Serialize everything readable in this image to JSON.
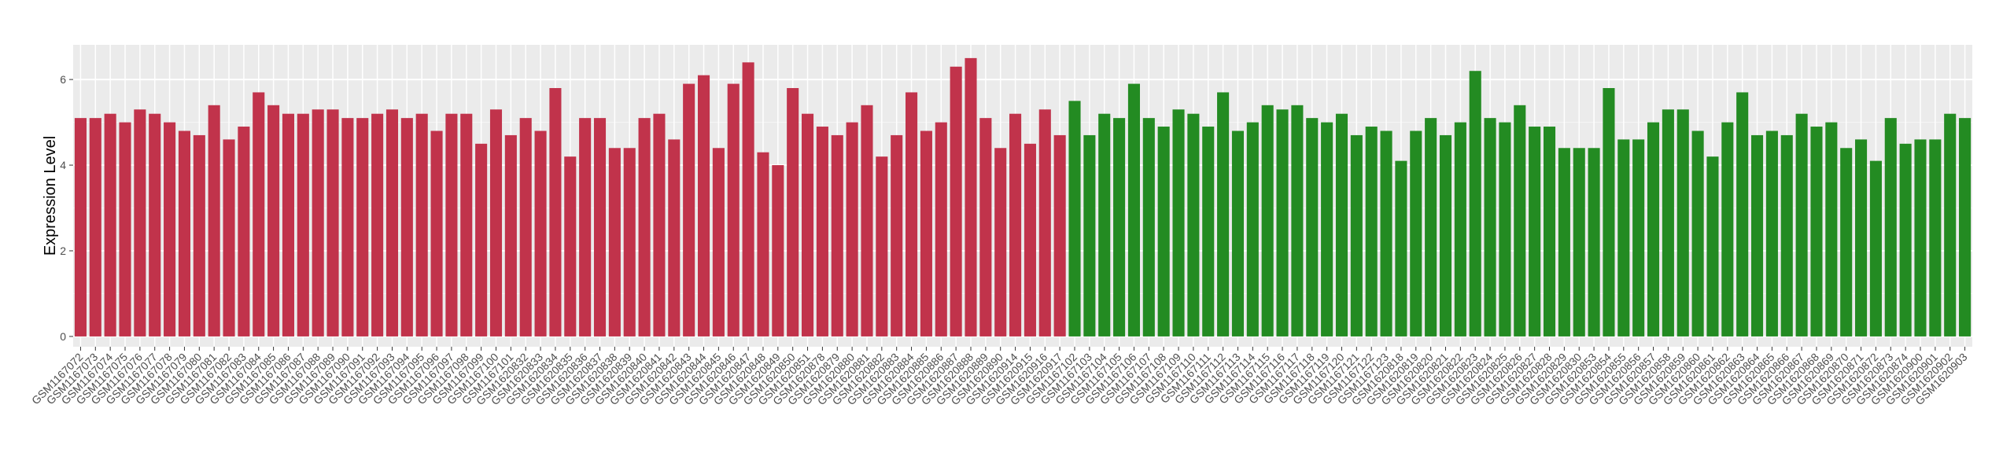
{
  "chart_data": {
    "type": "bar",
    "y_label": "Expression Level",
    "categories": [
      "GSM1167072",
      "GSM1167073",
      "GSM1167074",
      "GSM1167075",
      "GSM1167076",
      "GSM1167077",
      "GSM1167078",
      "GSM1167079",
      "GSM1167080",
      "GSM1167081",
      "GSM1167082",
      "GSM1167083",
      "GSM1167084",
      "GSM1167085",
      "GSM1167086",
      "GSM1167087",
      "GSM1167088",
      "GSM1167089",
      "GSM1167090",
      "GSM1167091",
      "GSM1167092",
      "GSM1167093",
      "GSM1167094",
      "GSM1167095",
      "GSM1167096",
      "GSM1167097",
      "GSM1167098",
      "GSM1167099",
      "GSM1167100",
      "GSM1167101",
      "GSM1620832",
      "GSM1620833",
      "GSM1620834",
      "GSM1620835",
      "GSM1620836",
      "GSM1620837",
      "GSM1620838",
      "GSM1620839",
      "GSM1620840",
      "GSM1620841",
      "GSM1620842",
      "GSM1620843",
      "GSM1620844",
      "GSM1620845",
      "GSM1620846",
      "GSM1620847",
      "GSM1620848",
      "GSM1620849",
      "GSM1620850",
      "GSM1620851",
      "GSM1620878",
      "GSM1620879",
      "GSM1620880",
      "GSM1620881",
      "GSM1620882",
      "GSM1620883",
      "GSM1620884",
      "GSM1620885",
      "GSM1620886",
      "GSM1620887",
      "GSM1620888",
      "GSM1620889",
      "GSM1620890",
      "GSM1620914",
      "GSM1620915",
      "GSM1620916",
      "GSM1620917",
      "GSM1167102",
      "GSM1167103",
      "GSM1167104",
      "GSM1167105",
      "GSM1167106",
      "GSM1167107",
      "GSM1167108",
      "GSM1167109",
      "GSM1167110",
      "GSM1167111",
      "GSM1167112",
      "GSM1167113",
      "GSM1167114",
      "GSM1167115",
      "GSM1167116",
      "GSM1167117",
      "GSM1167118",
      "GSM1167119",
      "GSM1167120",
      "GSM1167121",
      "GSM1167122",
      "GSM1167123",
      "GSM1620818",
      "GSM1620819",
      "GSM1620820",
      "GSM1620821",
      "GSM1620822",
      "GSM1620823",
      "GSM1620824",
      "GSM1620825",
      "GSM1620826",
      "GSM1620827",
      "GSM1620828",
      "GSM1620829",
      "GSM1620830",
      "GSM1620853",
      "GSM1620854",
      "GSM1620855",
      "GSM1620856",
      "GSM1620857",
      "GSM1620858",
      "GSM1620859",
      "GSM1620860",
      "GSM1620861",
      "GSM1620862",
      "GSM1620863",
      "GSM1620864",
      "GSM1620865",
      "GSM1620866",
      "GSM1620867",
      "GSM1620868",
      "GSM1620869",
      "GSM1620870",
      "GSM1620871",
      "GSM1620872",
      "GSM1620873",
      "GSM1620874",
      "GSM1620900",
      "GSM1620901",
      "GSM1620902",
      "GSM1620903"
    ],
    "series": [
      {
        "color": "#c1334b",
        "values": [
          5.1,
          5.1,
          5.2,
          5.0,
          5.3,
          5.2,
          5.0,
          4.8,
          4.7,
          5.4,
          4.6,
          4.9,
          5.7,
          5.4,
          5.2,
          5.2,
          5.3,
          5.3,
          5.1,
          5.1,
          5.2,
          5.3,
          5.1,
          5.2,
          4.8,
          5.2,
          5.2,
          4.5,
          5.3,
          4.7,
          5.1,
          4.8,
          5.8,
          4.2,
          5.1,
          5.1,
          4.4,
          4.4,
          5.1,
          5.2,
          4.6,
          5.9,
          6.1,
          4.4,
          5.9,
          6.4,
          4.3,
          4.0,
          5.8,
          5.2,
          4.9,
          4.7,
          5.0,
          5.4,
          4.2,
          4.7,
          5.7,
          4.8,
          5.0,
          6.3,
          6.5,
          5.1,
          4.4,
          5.2,
          4.5,
          5.3,
          4.7,
          null,
          null,
          null,
          null,
          null,
          null,
          null,
          null,
          null,
          null,
          null,
          null,
          null,
          null,
          null,
          null,
          null,
          null,
          null,
          null,
          null,
          null,
          null,
          null,
          null,
          null,
          null,
          null,
          null,
          null,
          null,
          null,
          null,
          null,
          null,
          null,
          null,
          null,
          null,
          null,
          null,
          null,
          null,
          null,
          null,
          null,
          null,
          null,
          null,
          null,
          null,
          null,
          null,
          null,
          null,
          null,
          null,
          null,
          null,
          null,
          null
        ]
      },
      {
        "color": "#238b22",
        "values": [
          null,
          null,
          null,
          null,
          null,
          null,
          null,
          null,
          null,
          null,
          null,
          null,
          null,
          null,
          null,
          null,
          null,
          null,
          null,
          null,
          null,
          null,
          null,
          null,
          null,
          null,
          null,
          null,
          null,
          null,
          null,
          null,
          null,
          null,
          null,
          null,
          null,
          null,
          null,
          null,
          null,
          null,
          null,
          null,
          null,
          null,
          null,
          null,
          null,
          null,
          null,
          null,
          null,
          null,
          null,
          null,
          null,
          null,
          null,
          null,
          null,
          null,
          null,
          null,
          null,
          null,
          null,
          5.5,
          4.7,
          5.2,
          5.1,
          5.9,
          5.1,
          4.9,
          5.3,
          5.2,
          4.9,
          5.7,
          4.8,
          5.0,
          5.4,
          5.3,
          5.4,
          5.1,
          5.0,
          5.2,
          4.7,
          4.9,
          4.8,
          4.1,
          4.8,
          5.1,
          4.7,
          5.0,
          6.2,
          5.1,
          5.0,
          5.4,
          4.9,
          4.9,
          4.4,
          4.4,
          4.4,
          5.8,
          4.6,
          4.6,
          5.0,
          5.3,
          5.3,
          4.8,
          4.2,
          5.0,
          5.7,
          4.7,
          4.8,
          4.7,
          5.2,
          4.9,
          5.0,
          4.4,
          4.6,
          4.1,
          5.1,
          4.5,
          4.6,
          4.6,
          5.2,
          5.1
        ]
      }
    ],
    "ylim": [
      -0.24,
      6.81
    ],
    "yticks": [
      0,
      2,
      4,
      6
    ],
    "grid": true
  }
}
